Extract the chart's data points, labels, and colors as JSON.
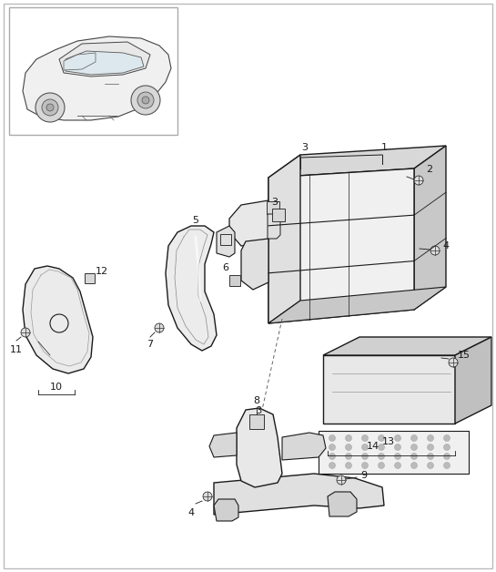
{
  "bg_color": "#ffffff",
  "line_color": "#1a1a1a",
  "fig_width": 5.45,
  "fig_height": 6.28,
  "dpi": 100
}
